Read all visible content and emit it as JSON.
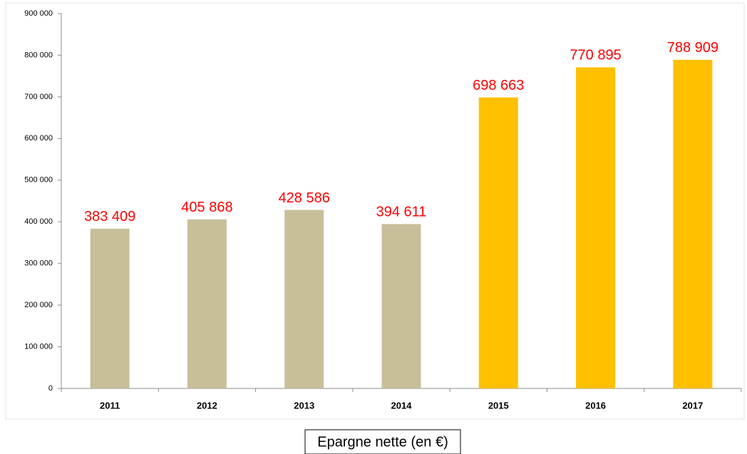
{
  "chart_data": {
    "type": "bar",
    "title": "Epargne nette (en €)",
    "categories": [
      "2011",
      "2012",
      "2013",
      "2014",
      "2015",
      "2016",
      "2017"
    ],
    "values": [
      383409,
      405868,
      428586,
      394611,
      698663,
      770895,
      788909
    ],
    "value_labels": [
      "383 409",
      "405 868",
      "428 586",
      "394 611",
      "698 663",
      "770 895",
      "788 909"
    ],
    "colors": [
      "#c8bf9a",
      "#c8bf9a",
      "#c8bf9a",
      "#c8bf9a",
      "#ffc000",
      "#ffc000",
      "#ffc000"
    ],
    "value_label_color": "#ff0000",
    "ylim": [
      0,
      900000
    ],
    "yticks": [
      {
        "value": 0,
        "label": "0"
      },
      {
        "value": 100000,
        "label": "100 000"
      },
      {
        "value": 200000,
        "label": "200 000"
      },
      {
        "value": 300000,
        "label": "300 000"
      },
      {
        "value": 400000,
        "label": "400 000"
      },
      {
        "value": 500000,
        "label": "500 000"
      },
      {
        "value": 600000,
        "label": "600 000"
      },
      {
        "value": 700000,
        "label": "700 000"
      },
      {
        "value": 800000,
        "label": "800 000"
      },
      {
        "value": 900000,
        "label": "900 000"
      }
    ],
    "grid": false
  }
}
